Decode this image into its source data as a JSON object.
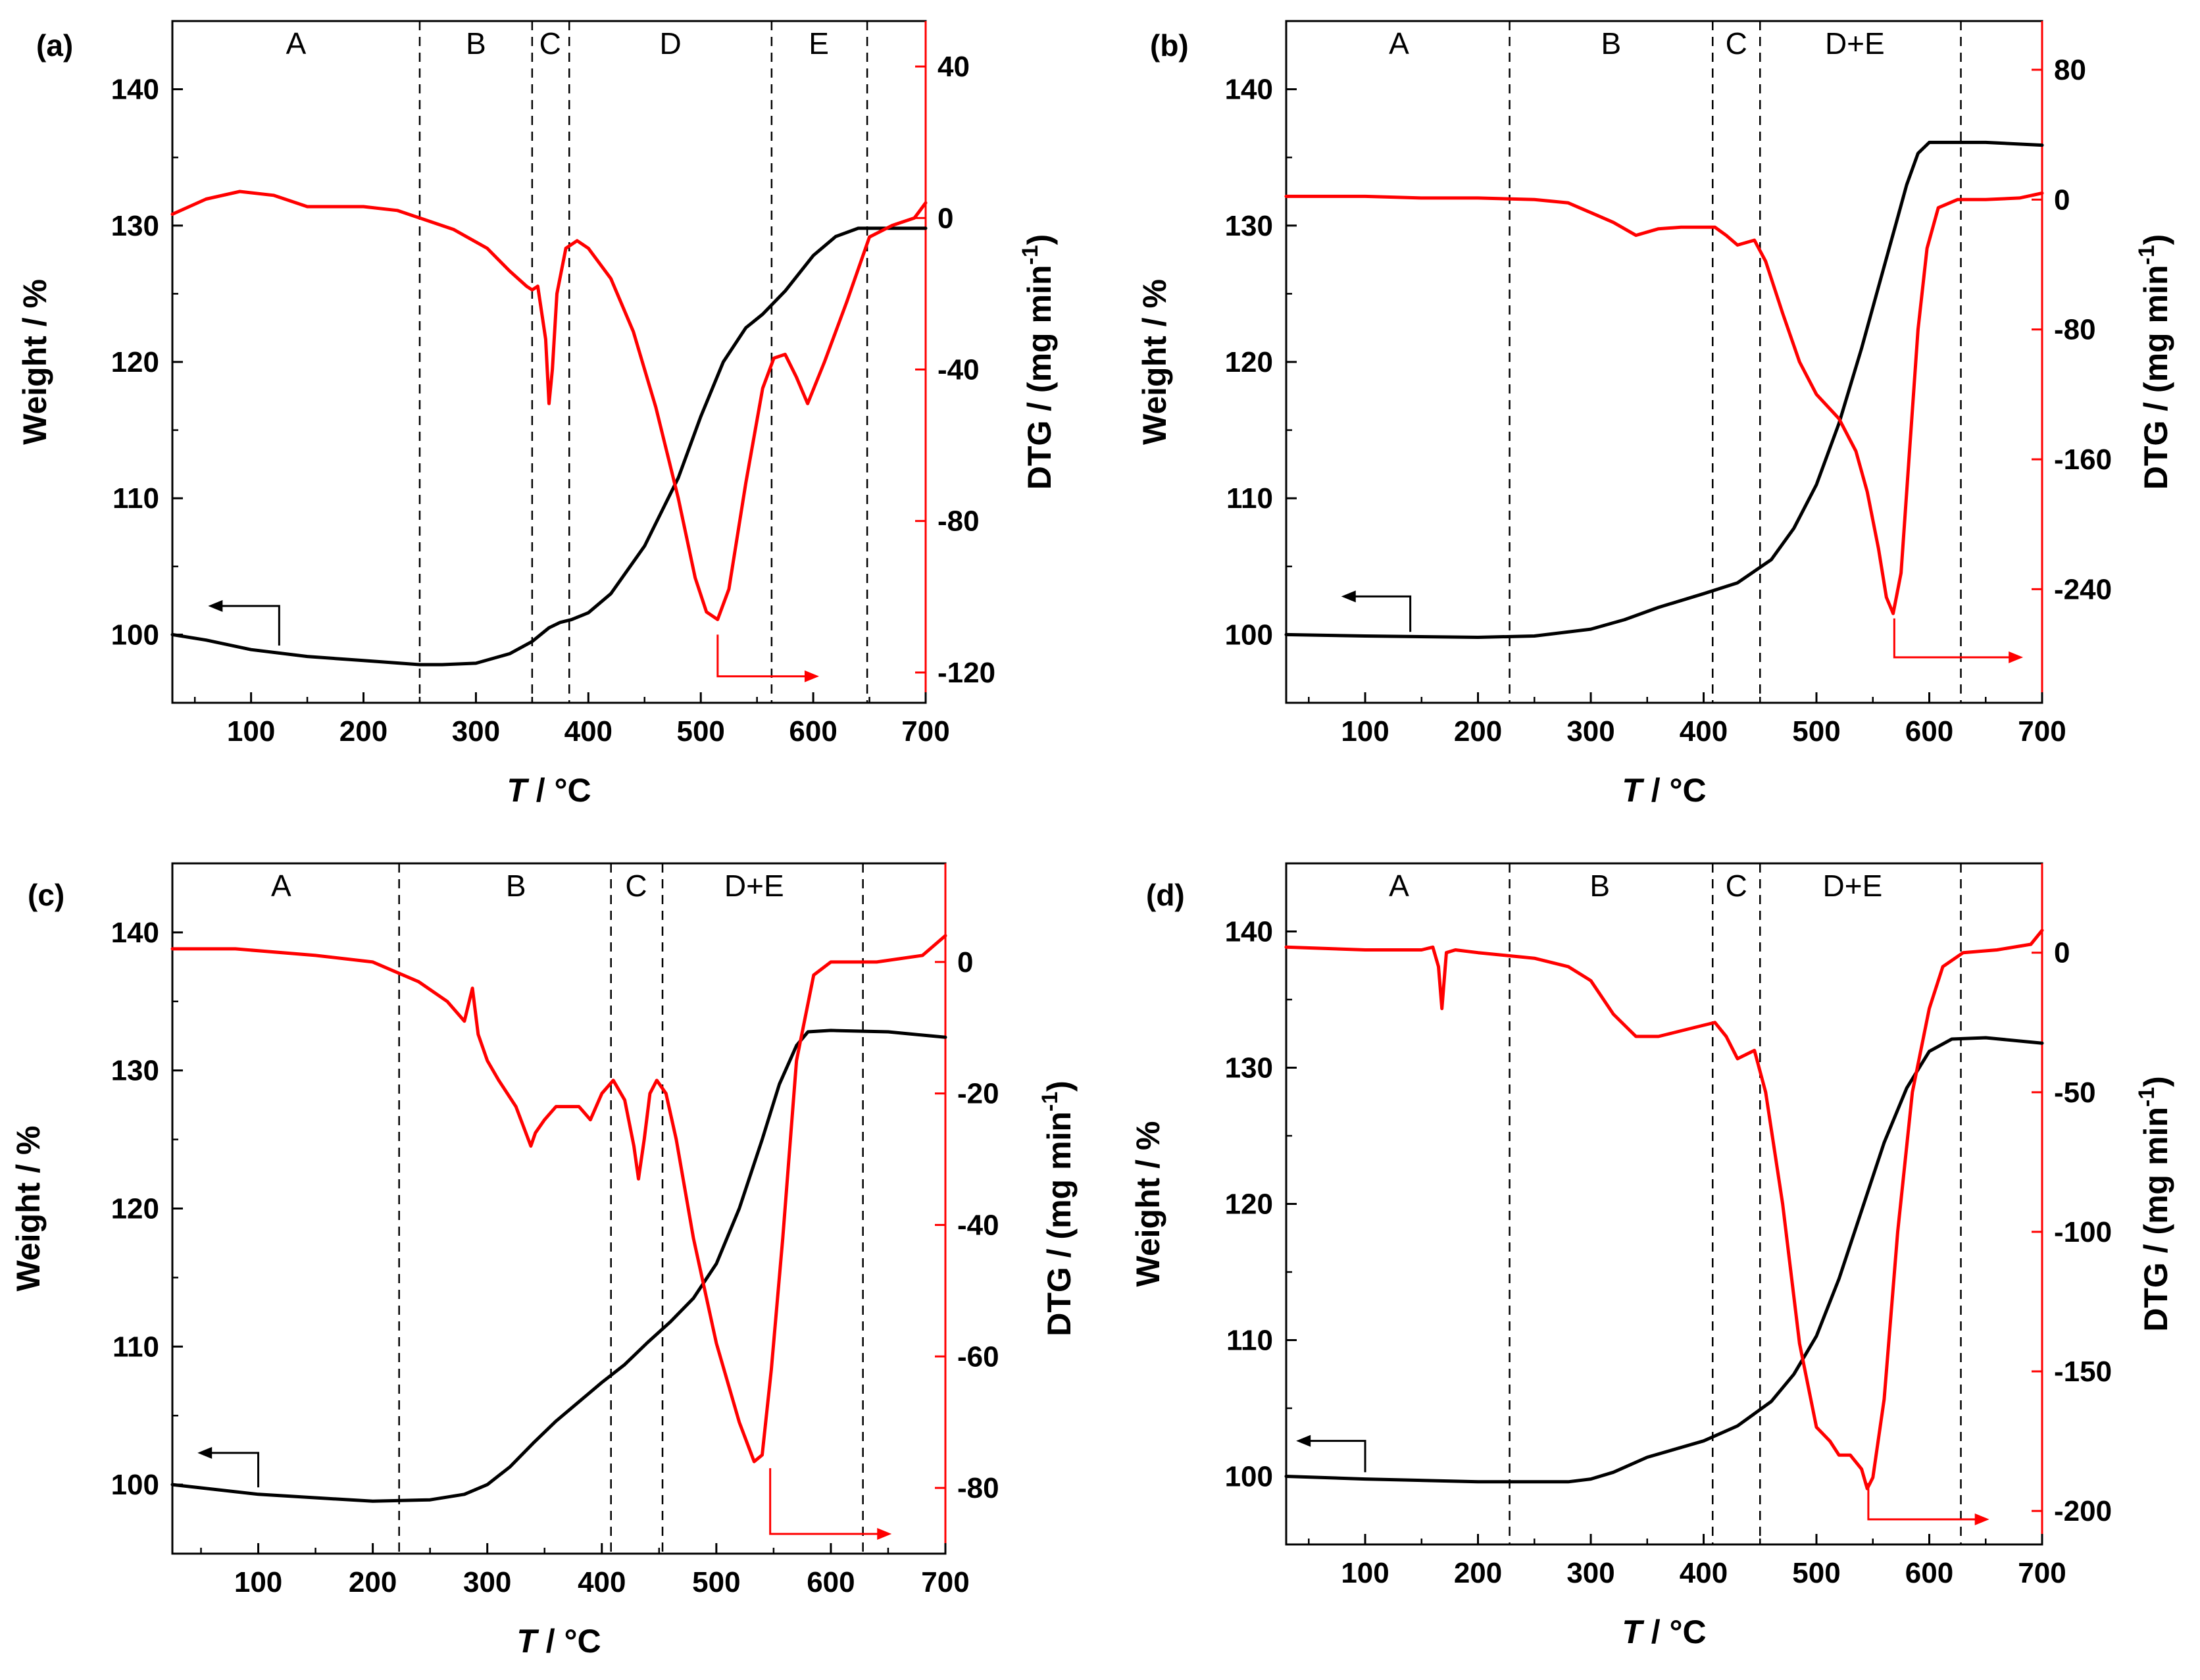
{
  "chart_data": [
    {
      "type": "line",
      "panel_label": "(a)",
      "xlabel_italic": "T",
      "xlabel_rest": " / °C",
      "ylabel": "Weight / %",
      "y2label": "DTG / (mg min",
      "y2label_sup": "-1",
      "y2label_end": ")",
      "xlim": [
        30,
        700
      ],
      "ylim": [
        95,
        145
      ],
      "y2lim": [
        -128,
        52
      ],
      "xticks": [
        100,
        200,
        300,
        400,
        500,
        600,
        700
      ],
      "yticks": [
        100,
        110,
        120,
        130,
        140
      ],
      "y2ticks": [
        40,
        0,
        -40,
        -80,
        -120
      ],
      "boundaries": [
        250,
        350,
        383,
        563,
        648
      ],
      "regions": [
        {
          "label": "A",
          "x": 140
        },
        {
          "label": "B",
          "x": 300
        },
        {
          "label": "C",
          "x": 366
        },
        {
          "label": "D",
          "x": 473
        },
        {
          "label": "E",
          "x": 605
        }
      ],
      "series": [
        {
          "name": "Weight",
          "axis": "left",
          "color": "#000000",
          "x": [
            30,
            60,
            100,
            150,
            200,
            250,
            270,
            300,
            330,
            350,
            365,
            375,
            385,
            400,
            420,
            450,
            480,
            500,
            520,
            540,
            555,
            575,
            600,
            620,
            640,
            660,
            700
          ],
          "y": [
            100,
            99.6,
            98.9,
            98.4,
            98.1,
            97.8,
            97.8,
            97.9,
            98.6,
            99.5,
            100.5,
            100.9,
            101.1,
            101.6,
            103,
            106.5,
            111.5,
            116,
            120,
            122.5,
            123.5,
            125.2,
            127.8,
            129.2,
            129.8,
            129.8,
            129.8
          ]
        },
        {
          "name": "DTG",
          "axis": "right",
          "color": "#ff0000",
          "x": [
            30,
            60,
            90,
            120,
            150,
            200,
            230,
            250,
            280,
            310,
            330,
            345,
            350,
            355,
            362,
            365,
            368,
            372,
            380,
            390,
            400,
            420,
            440,
            460,
            480,
            495,
            505,
            515,
            525,
            540,
            555,
            565,
            575,
            585,
            595,
            610,
            630,
            650,
            670,
            690,
            700
          ],
          "y": [
            1,
            5,
            7,
            6,
            3,
            3,
            2,
            0,
            -3,
            -8,
            -14,
            -18,
            -19,
            -18,
            -32,
            -49,
            -40,
            -20,
            -8,
            -6,
            -8,
            -16,
            -30,
            -50,
            -74,
            -95,
            -104,
            -106,
            -98,
            -70,
            -45,
            -37,
            -36,
            -42,
            -49,
            -38,
            -22,
            -5,
            -2,
            0,
            4
          ]
        }
      ],
      "arrows": [
        {
          "color": "#000000",
          "direction": "left",
          "to_axis": "left",
          "stem_x": 125,
          "stem_y_start": 99.2,
          "stem_y_end": 102.1,
          "tip_x": 70
        },
        {
          "color": "#ff0000",
          "direction": "right",
          "to_axis": "right",
          "stem_x": 515,
          "stem_y_start": -110,
          "stem_y_end": -121,
          "tip_x": 597
        }
      ]
    },
    {
      "type": "line",
      "panel_label": "(b)",
      "xlabel_italic": "T",
      "xlabel_rest": " / °C",
      "ylabel": "Weight / %",
      "y2label": "DTG / (mg min",
      "y2label_sup": "-1",
      "y2label_end": ")",
      "xlim": [
        30,
        700
      ],
      "ylim": [
        95,
        145
      ],
      "y2lim": [
        -310,
        110
      ],
      "xticks": [
        100,
        200,
        300,
        400,
        500,
        600,
        700
      ],
      "yticks": [
        100,
        110,
        120,
        130,
        140
      ],
      "y2ticks": [
        80,
        0,
        -80,
        -160,
        -240
      ],
      "boundaries": [
        228,
        408,
        450,
        628
      ],
      "regions": [
        {
          "label": "A",
          "x": 130
        },
        {
          "label": "B",
          "x": 318
        },
        {
          "label": "C",
          "x": 429
        },
        {
          "label": "D+E",
          "x": 534
        }
      ],
      "series": [
        {
          "name": "Weight",
          "axis": "left",
          "color": "#000000",
          "x": [
            30,
            100,
            200,
            250,
            300,
            330,
            360,
            400,
            430,
            460,
            480,
            500,
            520,
            540,
            555,
            570,
            580,
            590,
            600,
            620,
            650,
            700
          ],
          "y": [
            100,
            99.9,
            99.8,
            99.9,
            100.4,
            101.1,
            102,
            103,
            103.8,
            105.5,
            107.8,
            111,
            115.5,
            121,
            125.5,
            130,
            133,
            135.3,
            136.1,
            136.1,
            136.1,
            135.9
          ]
        },
        {
          "name": "DTG",
          "axis": "right",
          "color": "#ff0000",
          "x": [
            30,
            100,
            150,
            200,
            250,
            280,
            300,
            320,
            340,
            360,
            380,
            400,
            410,
            420,
            430,
            445,
            455,
            470,
            485,
            500,
            520,
            535,
            545,
            555,
            562,
            568,
            575,
            582,
            590,
            598,
            608,
            625,
            650,
            680,
            700
          ],
          "y": [
            2,
            2,
            1,
            1,
            0,
            -2,
            -8,
            -14,
            -22,
            -18,
            -17,
            -17,
            -17,
            -22,
            -28,
            -25,
            -38,
            -70,
            -100,
            -120,
            -135,
            -155,
            -180,
            -215,
            -245,
            -255,
            -230,
            -160,
            -80,
            -30,
            -5,
            0,
            0,
            1,
            4
          ]
        }
      ],
      "arrows": [
        {
          "color": "#000000",
          "direction": "left",
          "to_axis": "left",
          "stem_x": 140,
          "stem_y_start": 100.2,
          "stem_y_end": 102.8,
          "tip_x": 87
        },
        {
          "color": "#ff0000",
          "direction": "right",
          "to_axis": "right",
          "stem_x": 569,
          "stem_y_start": -258,
          "stem_y_end": -282,
          "tip_x": 675
        }
      ]
    },
    {
      "type": "line",
      "panel_label": "(c)",
      "xlabel_italic": "T",
      "xlabel_rest": " / °C",
      "ylabel": "Weight / %",
      "y2label": "DTG / (mg min",
      "y2label_sup": "-1",
      "y2label_end": ")",
      "xlim": [
        25,
        700
      ],
      "ylim": [
        95,
        145
      ],
      "y2lim": [
        -90,
        15
      ],
      "xticks": [
        100,
        200,
        300,
        400,
        500,
        600,
        700
      ],
      "yticks": [
        100,
        110,
        120,
        130,
        140
      ],
      "y2ticks": [
        0,
        -20,
        -40,
        -60,
        -80
      ],
      "boundaries": [
        223,
        408,
        453,
        628
      ],
      "regions": [
        {
          "label": "A",
          "x": 120
        },
        {
          "label": "B",
          "x": 325
        },
        {
          "label": "C",
          "x": 430
        },
        {
          "label": "D+E",
          "x": 533
        }
      ],
      "series": [
        {
          "name": "Weight",
          "axis": "left",
          "color": "#000000",
          "x": [
            25,
            100,
            200,
            250,
            280,
            300,
            320,
            340,
            360,
            380,
            400,
            420,
            440,
            460,
            480,
            500,
            520,
            540,
            555,
            570,
            580,
            600,
            650,
            700
          ],
          "y": [
            100,
            99.3,
            98.8,
            98.9,
            99.3,
            100,
            101.3,
            103,
            104.6,
            106,
            107.4,
            108.7,
            110.3,
            111.8,
            113.5,
            116,
            120,
            125,
            129,
            131.8,
            132.8,
            132.9,
            132.8,
            132.4
          ]
        },
        {
          "name": "DTG",
          "axis": "right",
          "color": "#ff0000",
          "x": [
            25,
            80,
            150,
            200,
            240,
            265,
            280,
            287,
            292,
            300,
            310,
            325,
            338,
            342,
            350,
            360,
            370,
            380,
            390,
            400,
            410,
            420,
            428,
            432,
            437,
            442,
            448,
            456,
            465,
            480,
            500,
            520,
            533,
            540,
            548,
            558,
            570,
            585,
            600,
            640,
            680,
            700
          ],
          "y": [
            2,
            2,
            1,
            0,
            -3,
            -6,
            -9,
            -4,
            -11,
            -15,
            -18,
            -22,
            -28,
            -26,
            -24,
            -22,
            -22,
            -22,
            -24,
            -20,
            -18,
            -21,
            -28,
            -33,
            -27,
            -20,
            -18,
            -20,
            -27,
            -42,
            -58,
            -70,
            -76,
            -75,
            -62,
            -42,
            -15,
            -2,
            0,
            0,
            1,
            4
          ]
        }
      ],
      "arrows": [
        {
          "color": "#000000",
          "direction": "left",
          "to_axis": "left",
          "stem_x": 100,
          "stem_y_start": 99.8,
          "stem_y_end": 102.3,
          "tip_x": 55
        },
        {
          "color": "#ff0000",
          "direction": "right",
          "to_axis": "right",
          "stem_x": 547,
          "stem_y_start": -77,
          "stem_y_end": -87,
          "tip_x": 645
        }
      ]
    },
    {
      "type": "line",
      "panel_label": "(d)",
      "xlabel_italic": "T",
      "xlabel_rest": " / °C",
      "ylabel": "Weight / %",
      "y2label": "DTG / (mg min",
      "y2label_sup": "-1",
      "y2label_end": ")",
      "xlim": [
        30,
        700
      ],
      "ylim": [
        95,
        145
      ],
      "y2lim": [
        -212,
        32
      ],
      "xticks": [
        100,
        200,
        300,
        400,
        500,
        600,
        700
      ],
      "yticks": [
        100,
        110,
        120,
        130,
        140
      ],
      "y2ticks": [
        0,
        -50,
        -100,
        -150,
        -200
      ],
      "boundaries": [
        228,
        408,
        450,
        628
      ],
      "regions": [
        {
          "label": "A",
          "x": 130
        },
        {
          "label": "B",
          "x": 308
        },
        {
          "label": "C",
          "x": 429
        },
        {
          "label": "D+E",
          "x": 532
        }
      ],
      "series": [
        {
          "name": "Weight",
          "axis": "left",
          "color": "#000000",
          "x": [
            30,
            100,
            200,
            280,
            300,
            320,
            350,
            400,
            430,
            460,
            480,
            500,
            520,
            540,
            560,
            580,
            600,
            620,
            650,
            700
          ],
          "y": [
            100,
            99.8,
            99.6,
            99.6,
            99.8,
            100.3,
            101.4,
            102.6,
            103.7,
            105.5,
            107.5,
            110.3,
            114.5,
            119.5,
            124.5,
            128.5,
            131.2,
            132.1,
            132.2,
            131.8
          ]
        },
        {
          "name": "DTG",
          "axis": "right",
          "color": "#ff0000",
          "x": [
            30,
            100,
            150,
            160,
            165,
            168,
            172,
            180,
            200,
            250,
            280,
            300,
            320,
            340,
            360,
            380,
            400,
            410,
            420,
            430,
            445,
            455,
            470,
            485,
            500,
            512,
            520,
            530,
            540,
            545,
            550,
            560,
            572,
            585,
            600,
            612,
            630,
            660,
            690,
            700
          ],
          "y": [
            2,
            1,
            1,
            2,
            -5,
            -20,
            0,
            1,
            0,
            -2,
            -5,
            -10,
            -22,
            -30,
            -30,
            -28,
            -26,
            -25,
            -30,
            -38,
            -35,
            -50,
            -90,
            -140,
            -170,
            -175,
            -180,
            -180,
            -185,
            -192,
            -188,
            -160,
            -100,
            -50,
            -20,
            -5,
            0,
            1,
            3,
            8
          ]
        }
      ],
      "arrows": [
        {
          "color": "#000000",
          "direction": "left",
          "to_axis": "left",
          "stem_x": 100,
          "stem_y_start": 100.3,
          "stem_y_end": 102.6,
          "tip_x": 47
        },
        {
          "color": "#ff0000",
          "direction": "right",
          "to_axis": "right",
          "stem_x": 546,
          "stem_y_start": -190,
          "stem_y_end": -203,
          "tip_x": 645
        }
      ]
    }
  ]
}
